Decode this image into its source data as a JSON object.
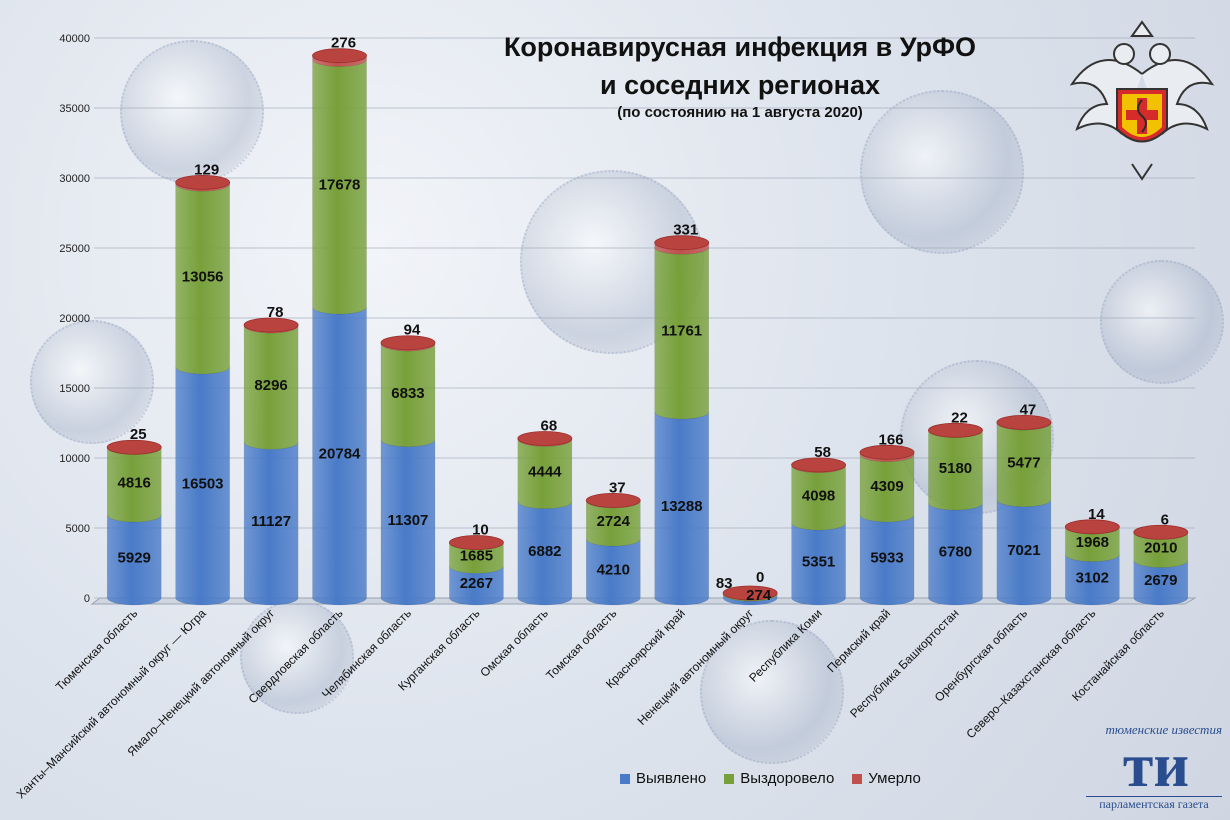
{
  "chart_data": {
    "type": "bar",
    "stacked": true,
    "title_line1": "Коронавирусная инфекция в УрФО",
    "title_line2": "и соседних регионах",
    "subtitle": "(по состоянию на 1 августа 2020)",
    "ylim": [
      0,
      40000
    ],
    "yticks": [
      0,
      5000,
      10000,
      15000,
      20000,
      25000,
      30000,
      35000,
      40000
    ],
    "grid": true,
    "legend_position": "bottom",
    "categories": [
      "Тюменская область",
      "Ханты–Мансийский автономный округ — Югра",
      "Ямало–Ненецкий автономный округ",
      "Свердловская область",
      "Челябинская область",
      "Курганская область",
      "Омская область",
      "Томская область",
      "Красноярский край",
      "Ненецкий автономный округ",
      "Республика Коми",
      "Пермский край",
      "Республика Башкортостан",
      "Оренбургская область",
      "Северо–Казахстанская область",
      "Костанайская область"
    ],
    "series": [
      {
        "name": "Выявлено",
        "color": "#4a7bc8",
        "values": [
          5929,
          16503,
          11127,
          20784,
          11307,
          2267,
          6882,
          4210,
          13288,
          274,
          5351,
          5933,
          6780,
          7021,
          3102,
          2679
        ]
      },
      {
        "name": "Выздоровело",
        "color": "#77a03a",
        "values": [
          4816,
          13056,
          8296,
          17678,
          6833,
          1685,
          4444,
          2724,
          11761,
          83,
          4098,
          4309,
          5180,
          5477,
          1968,
          2010
        ]
      },
      {
        "name": "Умерло",
        "color": "#c0504d",
        "values": [
          25,
          129,
          78,
          276,
          94,
          10,
          68,
          37,
          331,
          0,
          58,
          166,
          22,
          47,
          14,
          6
        ]
      }
    ]
  },
  "brand": {
    "top_text": "тюменские известия",
    "logo_text": "ти",
    "bottom_text": "парламентская газета"
  },
  "emblem": {
    "icon": "rospotrebnadzor-emblem-icon"
  }
}
